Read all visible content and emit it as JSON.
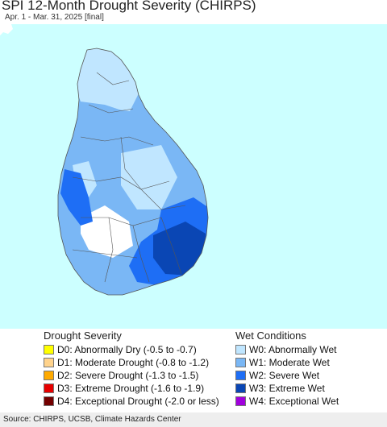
{
  "title": "SPI 12-Month Drought Severity (CHIRPS)",
  "subtitle": "Apr. 1 - Mar. 31, 2025 [final]",
  "colors": {
    "ocean": "#ccffff",
    "land_normal": "#ffffff",
    "W0": "#c0e6ff",
    "W1": "#7ab7f5",
    "W2": "#1e6ef5",
    "W3": "#0a46b4",
    "W4": "#a000dc",
    "D0": "#ffff00",
    "D1": "#ffd38c",
    "D2": "#ffaa00",
    "D3": "#e60000",
    "D4": "#730000",
    "boundary": "#555555"
  },
  "legend": {
    "drought": {
      "title": "Drought Severity",
      "items": [
        {
          "code": "D0",
          "label": "D0: Abnormally Dry (-0.5 to -0.7)"
        },
        {
          "code": "D1",
          "label": "D1: Moderate Drought (-0.8 to -1.2)"
        },
        {
          "code": "D2",
          "label": "D2: Severe Drought (-1.3 to -1.5)"
        },
        {
          "code": "D3",
          "label": "D3: Extreme Drought (-1.6 to -1.9)"
        },
        {
          "code": "D4",
          "label": "D4: Exceptional Drought (-2.0 or less)"
        }
      ]
    },
    "wet": {
      "title": "Wet Conditions",
      "items": [
        {
          "code": "W0",
          "label": "W0: Abnormally Wet"
        },
        {
          "code": "W1",
          "label": "W1: Moderate Wet"
        },
        {
          "code": "W2",
          "label": "W2: Severe Wet"
        },
        {
          "code": "W3",
          "label": "W3: Extreme Wet"
        },
        {
          "code": "W4",
          "label": "W4: Exceptional Wet"
        }
      ]
    }
  },
  "source": "Source: CHIRPS, UCSB, Climate Hazards Center"
}
